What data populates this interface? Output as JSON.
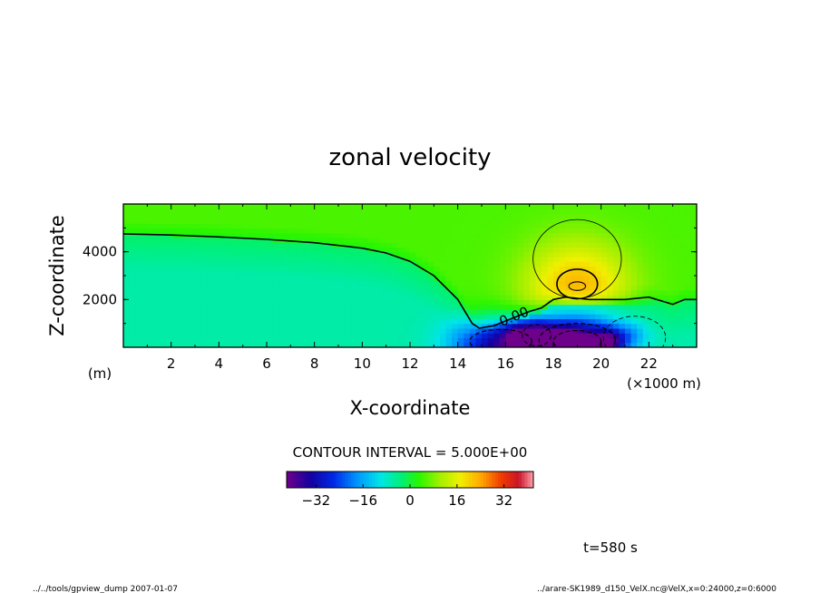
{
  "chart_data": {
    "type": "heatmap",
    "title": "zonal velocity",
    "xlabel": "X-coordinate",
    "ylabel": "Z-coordinate",
    "x_unit_label": "(×1000 m)",
    "y_unit_label": "(m)",
    "xlim": [
      0,
      24
    ],
    "ylim": [
      0,
      6000
    ],
    "x_ticks": [
      "2",
      "4",
      "6",
      "8",
      "10",
      "12",
      "14",
      "16",
      "18",
      "20",
      "22"
    ],
    "x_tick_values": [
      2,
      4,
      6,
      8,
      10,
      12,
      14,
      16,
      18,
      20,
      22
    ],
    "y_ticks": [
      "2000",
      "4000"
    ],
    "y_tick_values": [
      2000,
      4000
    ],
    "contour_interval_text": "CONTOUR INTERVAL = 5.000E+00",
    "contour_label": "0.00",
    "colorbar_ticks": [
      "−32",
      "−16",
      "0",
      "16",
      "32"
    ],
    "colorbar_tick_values": [
      -32,
      -16,
      0,
      16,
      32
    ],
    "colorbar_range": [
      -42,
      42
    ],
    "time_text": "t=580 s",
    "footer_left": "../../tools/gpview_dump  2007-01-07",
    "footer_right": "../arare-SK1989_d150_VelX.nc@VelX,x=0:24000,z=0:6000",
    "zero_contour": [
      [
        0,
        4750
      ],
      [
        2,
        4700
      ],
      [
        4,
        4620
      ],
      [
        6,
        4520
      ],
      [
        8,
        4380
      ],
      [
        10,
        4150
      ],
      [
        11,
        3950
      ],
      [
        12,
        3600
      ],
      [
        13,
        3000
      ],
      [
        14,
        2000
      ],
      [
        14.6,
        1000
      ],
      [
        14.9,
        800
      ],
      [
        15.5,
        900
      ],
      [
        16,
        1100
      ],
      [
        16.5,
        1300
      ],
      [
        17,
        1500
      ],
      [
        17.5,
        1650
      ],
      [
        18,
        2000
      ],
      [
        18.5,
        2100
      ],
      [
        19,
        2050
      ],
      [
        19.5,
        2000
      ],
      [
        20,
        2000
      ],
      [
        21,
        2000
      ],
      [
        22,
        2100
      ],
      [
        23,
        1800
      ],
      [
        23.5,
        2000
      ],
      [
        24,
        2000
      ]
    ],
    "positive_cell": {
      "center_x": 19.0,
      "center_z": 2500,
      "peak": 18,
      "radius_x": 3.2,
      "radius_z": 2800
    },
    "negative_cells": [
      {
        "center_x": 19.0,
        "center_z": 150,
        "peak": -40
      },
      {
        "center_x": 15.7,
        "center_z": 150,
        "peak": -30
      }
    ],
    "background_value": 5
  }
}
